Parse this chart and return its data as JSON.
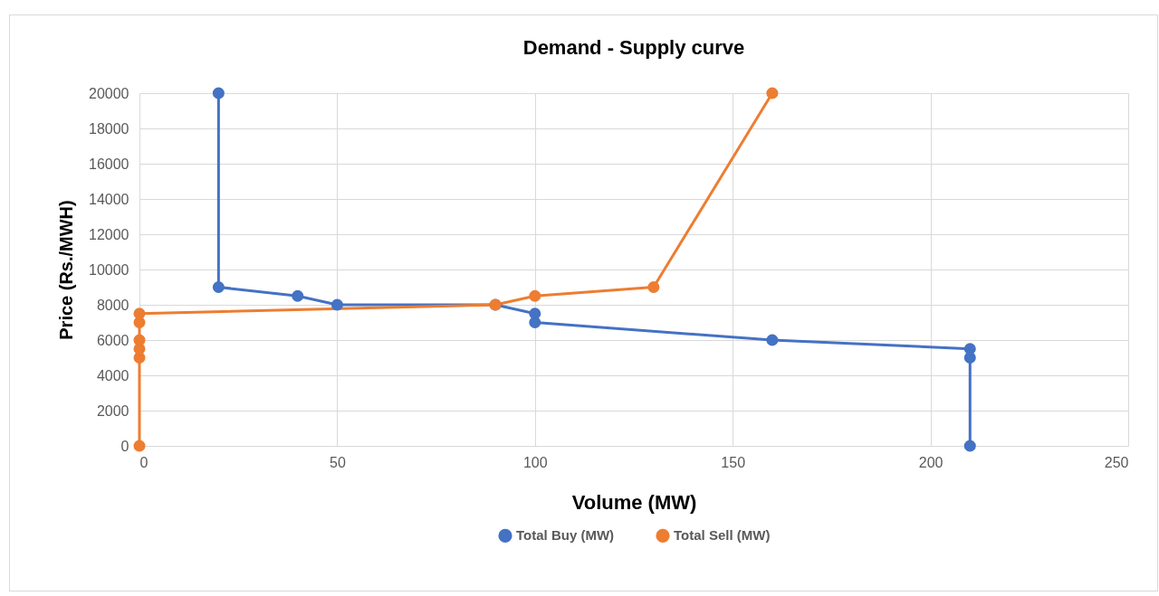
{
  "chart_data": {
    "type": "line",
    "title": "Demand - Supply curve",
    "xlabel": "Volume (MW)",
    "ylabel": "Price (Rs./MWH)",
    "xlim": [
      0,
      250
    ],
    "xticks": [
      0,
      50,
      100,
      150,
      200,
      250
    ],
    "ylim": [
      0,
      20000
    ],
    "yticks": [
      0,
      2000,
      4000,
      6000,
      8000,
      10000,
      12000,
      14000,
      16000,
      18000,
      20000
    ],
    "grid": true,
    "legend": "bottom",
    "marker": "circle",
    "line_style": "solid",
    "series": [
      {
        "name": "Total Buy (MW)",
        "color": "#4472c4",
        "x": [
          20,
          20,
          40,
          50,
          90,
          100,
          100,
          160,
          210,
          210,
          210
        ],
        "values": [
          20000,
          9000,
          8500,
          8000,
          8000,
          7500,
          7000,
          6000,
          5500,
          5000,
          0
        ]
      },
      {
        "name": "Total Sell (MW)",
        "color": "#ed7d31",
        "x": [
          0,
          0,
          0,
          0,
          0,
          0,
          90,
          100,
          130,
          160
        ],
        "values": [
          0,
          5000,
          5500,
          6000,
          7000,
          7500,
          8000,
          8500,
          9000,
          20000
        ]
      }
    ]
  }
}
